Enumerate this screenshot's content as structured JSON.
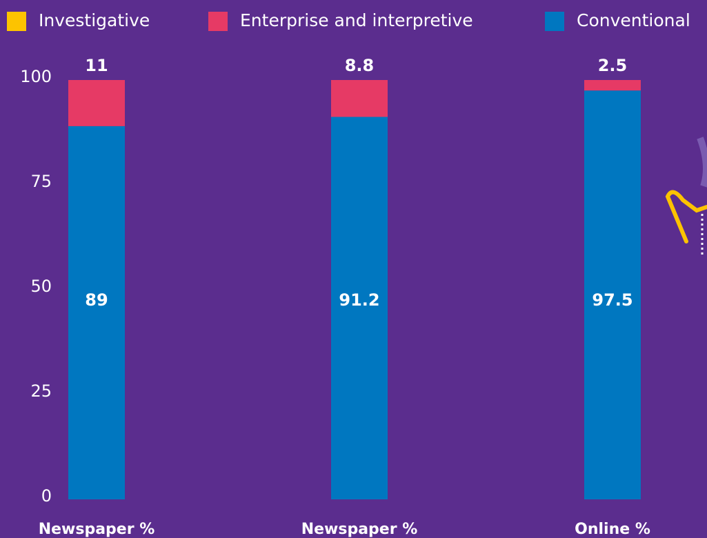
{
  "chart_data": {
    "type": "stacked_bar",
    "categories": [
      "Newspaper %",
      "Newspaper %",
      "Online %"
    ],
    "series": [
      {
        "name": "Investigative",
        "color": "#fdc300",
        "values": [
          0,
          0,
          0
        ]
      },
      {
        "name": "Conventional",
        "color": "#0077c0",
        "values": [
          89,
          91.2,
          97.5
        ]
      },
      {
        "name": "Enterprise and interpretive",
        "color": "#e63a65",
        "values": [
          11,
          8.8,
          2.5
        ]
      }
    ],
    "legend_order": [
      0,
      2,
      1
    ],
    "ylim": [
      0,
      100
    ],
    "yticks": [
      0,
      25,
      50,
      75,
      100
    ],
    "grid": false
  }
}
